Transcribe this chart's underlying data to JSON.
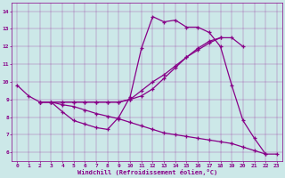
{
  "xlabel": "Windchill (Refroidissement éolien,°C)",
  "bg_color": "#cce8e8",
  "line_color": "#880088",
  "xlim": [
    -0.5,
    23.5
  ],
  "ylim": [
    5.5,
    14.5
  ],
  "xticks": [
    0,
    1,
    2,
    3,
    4,
    5,
    6,
    7,
    8,
    9,
    10,
    11,
    12,
    13,
    14,
    15,
    16,
    17,
    18,
    19,
    20,
    21,
    22,
    23
  ],
  "yticks": [
    6,
    7,
    8,
    9,
    10,
    11,
    12,
    13,
    14
  ],
  "lines": [
    {
      "x": [
        0,
        1,
        2,
        3,
        4,
        5,
        6,
        7,
        8,
        9,
        10,
        11,
        12,
        13,
        14,
        15,
        16,
        17,
        18,
        19,
        20,
        21,
        22
      ],
      "y": [
        9.8,
        9.2,
        8.85,
        8.85,
        8.3,
        7.8,
        7.6,
        7.4,
        7.3,
        8.0,
        9.15,
        11.9,
        13.7,
        13.4,
        13.5,
        13.1,
        13.1,
        12.8,
        12.0,
        9.8,
        7.8,
        6.8,
        5.9
      ]
    },
    {
      "x": [
        2,
        3,
        4,
        5,
        6,
        7,
        8,
        9,
        10,
        11,
        12,
        13,
        14,
        15,
        16,
        17,
        18,
        19,
        20
      ],
      "y": [
        8.85,
        8.85,
        8.85,
        8.85,
        8.85,
        8.85,
        8.85,
        8.85,
        9.0,
        9.5,
        10.0,
        10.4,
        10.9,
        11.4,
        11.8,
        12.2,
        12.5,
        12.5,
        12.0
      ]
    },
    {
      "x": [
        2,
        3,
        4,
        5,
        6,
        7,
        8,
        9,
        10,
        11,
        12,
        13,
        14,
        15,
        16,
        17,
        18
      ],
      "y": [
        8.85,
        8.85,
        8.85,
        8.85,
        8.85,
        8.85,
        8.85,
        8.85,
        9.0,
        9.2,
        9.6,
        10.2,
        10.8,
        11.4,
        11.9,
        12.3,
        12.5
      ]
    },
    {
      "x": [
        2,
        3,
        4,
        5,
        6,
        7,
        8,
        9,
        10,
        11,
        12,
        13,
        14,
        15,
        16,
        17,
        18,
        19,
        20,
        21,
        22,
        23
      ],
      "y": [
        8.85,
        8.85,
        8.7,
        8.6,
        8.4,
        8.2,
        8.05,
        7.9,
        7.7,
        7.5,
        7.3,
        7.1,
        7.0,
        6.9,
        6.8,
        6.7,
        6.6,
        6.5,
        6.3,
        6.1,
        5.9,
        5.9
      ]
    }
  ]
}
